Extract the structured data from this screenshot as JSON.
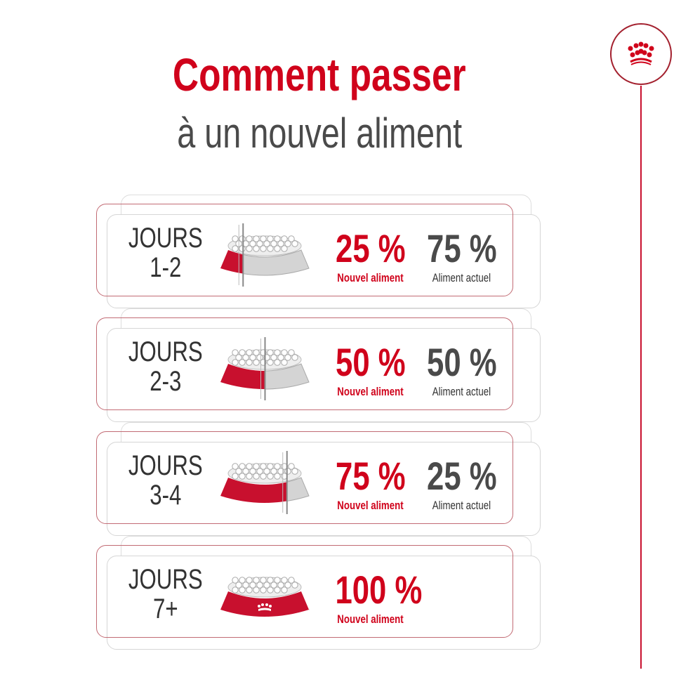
{
  "title": {
    "line1": "Comment passer",
    "line2": "à un nouvel aliment"
  },
  "colors": {
    "brand_red": "#d0021b",
    "text_gray": "#4a4a4a"
  },
  "logo_icon": "crown-icon",
  "steps": [
    {
      "days_label": "JOURS",
      "days": "1-2",
      "new_pct": "25 %",
      "new_label": "Nouvel aliment",
      "current_pct": "75 %",
      "current_label": "Aliment actuel",
      "new_fraction": 0.25
    },
    {
      "days_label": "JOURS",
      "days": "2-3",
      "new_pct": "50 %",
      "new_label": "Nouvel aliment",
      "current_pct": "50 %",
      "current_label": "Aliment actuel",
      "new_fraction": 0.5
    },
    {
      "days_label": "JOURS",
      "days": "3-4",
      "new_pct": "75 %",
      "new_label": "Nouvel aliment",
      "current_pct": "25 %",
      "current_label": "Aliment actuel",
      "new_fraction": 0.75
    },
    {
      "days_label": "JOURS",
      "days": "7+",
      "new_pct": "100 %",
      "new_label": "Nouvel aliment",
      "new_fraction": 1.0
    }
  ]
}
